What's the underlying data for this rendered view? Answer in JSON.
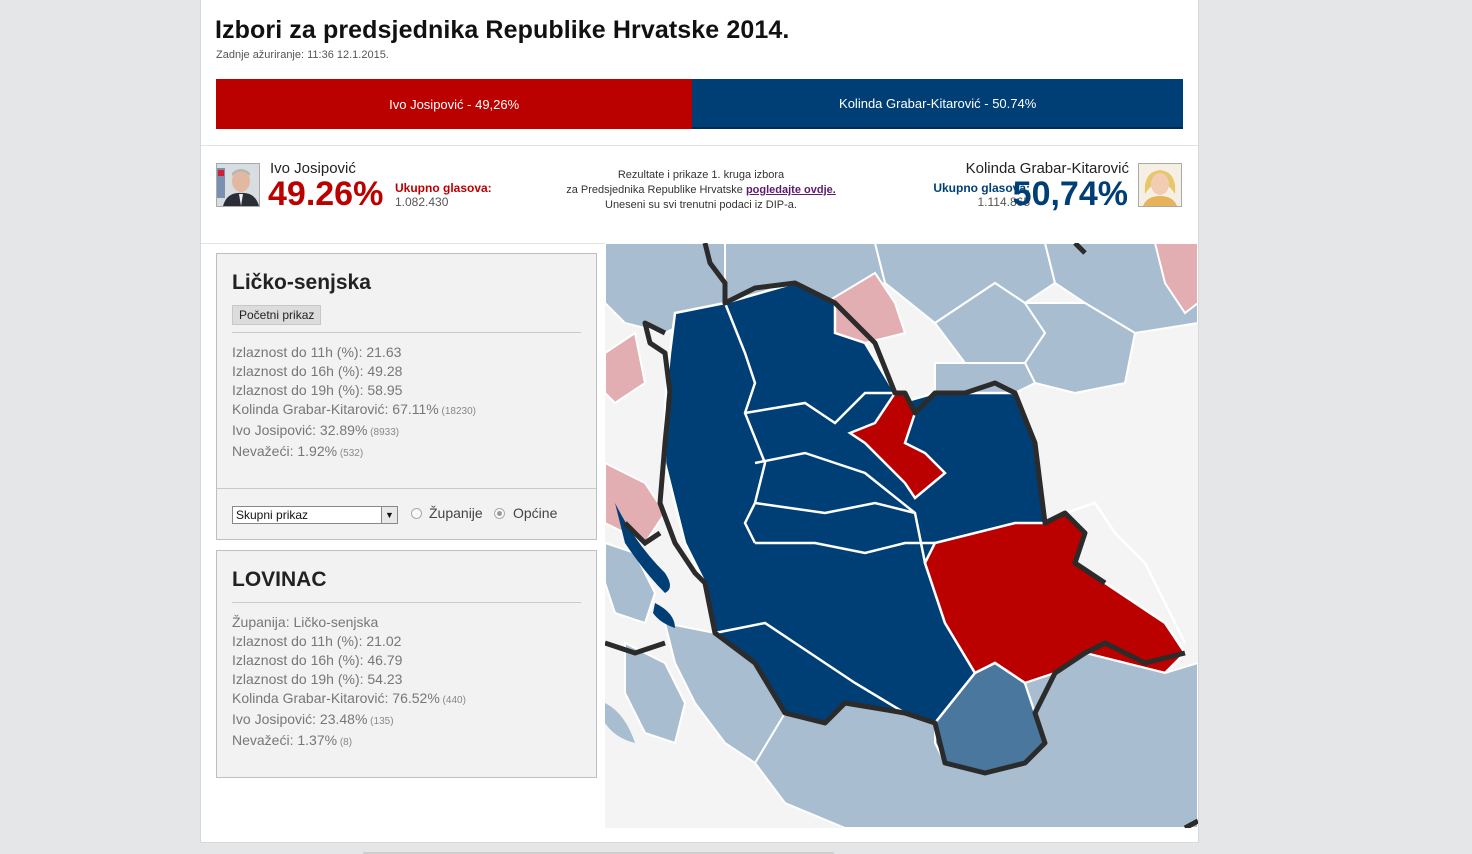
{
  "header": {
    "title": "Izbori za predsjednika Republike Hrvatske 2014.",
    "updated": "Zadnje ažuriranje: 11:36 12.1.2015."
  },
  "result_bar": {
    "left_label": "Ivo Josipović - 49,26%",
    "right_label": "Kolinda Grabar-Kitarović - 50.74%",
    "left_share": 49.26,
    "right_share": 50.74,
    "left_color": "#bb0000",
    "right_color": "#003f75"
  },
  "candidates": {
    "left": {
      "name": "Ivo Josipović",
      "percent": "49.26%",
      "votes_label": "Ukupno glasova:",
      "votes": "1.082.430",
      "color": "#bb0000"
    },
    "right": {
      "name": "Kolinda Grabar-Kitarović",
      "percent": "50,74%",
      "votes_label": "Ukupno glasova:",
      "votes": "1.114.865",
      "color": "#003f75"
    },
    "note_line1": "Rezultate i prikaze 1. kruga izbora",
    "note_line2_prefix": "za Predsjednika Republike Hrvatske ",
    "note_link": "pogledajte ovdje.",
    "note_line3": "Uneseni su svi trenutni podaci iz DIP-a."
  },
  "county_panel": {
    "title": "Ličko-senjska",
    "reset_button": "Početni prikaz",
    "stats": [
      {
        "label": "Izlaznost do 11h (%): 21.63",
        "extra": ""
      },
      {
        "label": "Izlaznost do 16h (%): 49.28",
        "extra": ""
      },
      {
        "label": "Izlaznost do 19h (%): 58.95",
        "extra": ""
      },
      {
        "label": "Kolinda Grabar-Kitarović: 67.11%",
        "extra": "(18230)"
      },
      {
        "label": "Ivo Josipović: 32.89%",
        "extra": "(8933)"
      },
      {
        "label": "Nevažeći: 1.92%",
        "extra": "(532)"
      }
    ],
    "view_select": "Skupni prikaz",
    "radio_counties": "Županije",
    "radio_municipalities": "Općine",
    "selected_radio": "Općine"
  },
  "municipality_panel": {
    "title": "LOVINAC",
    "stats": [
      {
        "label": "Županija: Ličko-senjska",
        "extra": ""
      },
      {
        "label": "Izlaznost do 11h (%): 21.02",
        "extra": ""
      },
      {
        "label": "Izlaznost do 16h (%): 46.79",
        "extra": ""
      },
      {
        "label": "Izlaznost do 19h (%): 54.23",
        "extra": ""
      },
      {
        "label": "Kolinda Grabar-Kitarović: 76.52%",
        "extra": "(440)"
      },
      {
        "label": "Ivo Josipović: 23.48%",
        "extra": "(135)"
      },
      {
        "label": "Nevažeći: 1.37%",
        "extra": "(8)"
      }
    ]
  },
  "map": {
    "colors": {
      "grabar_strong": "#003f75",
      "grabar_light": "#a9bdd1",
      "grabar_medium": "#4a779e",
      "josipovic_strong": "#bb0000",
      "josipovic_light": "#e3aeb1",
      "background": "#f4f4f4",
      "border": "#2b2b2b"
    }
  }
}
